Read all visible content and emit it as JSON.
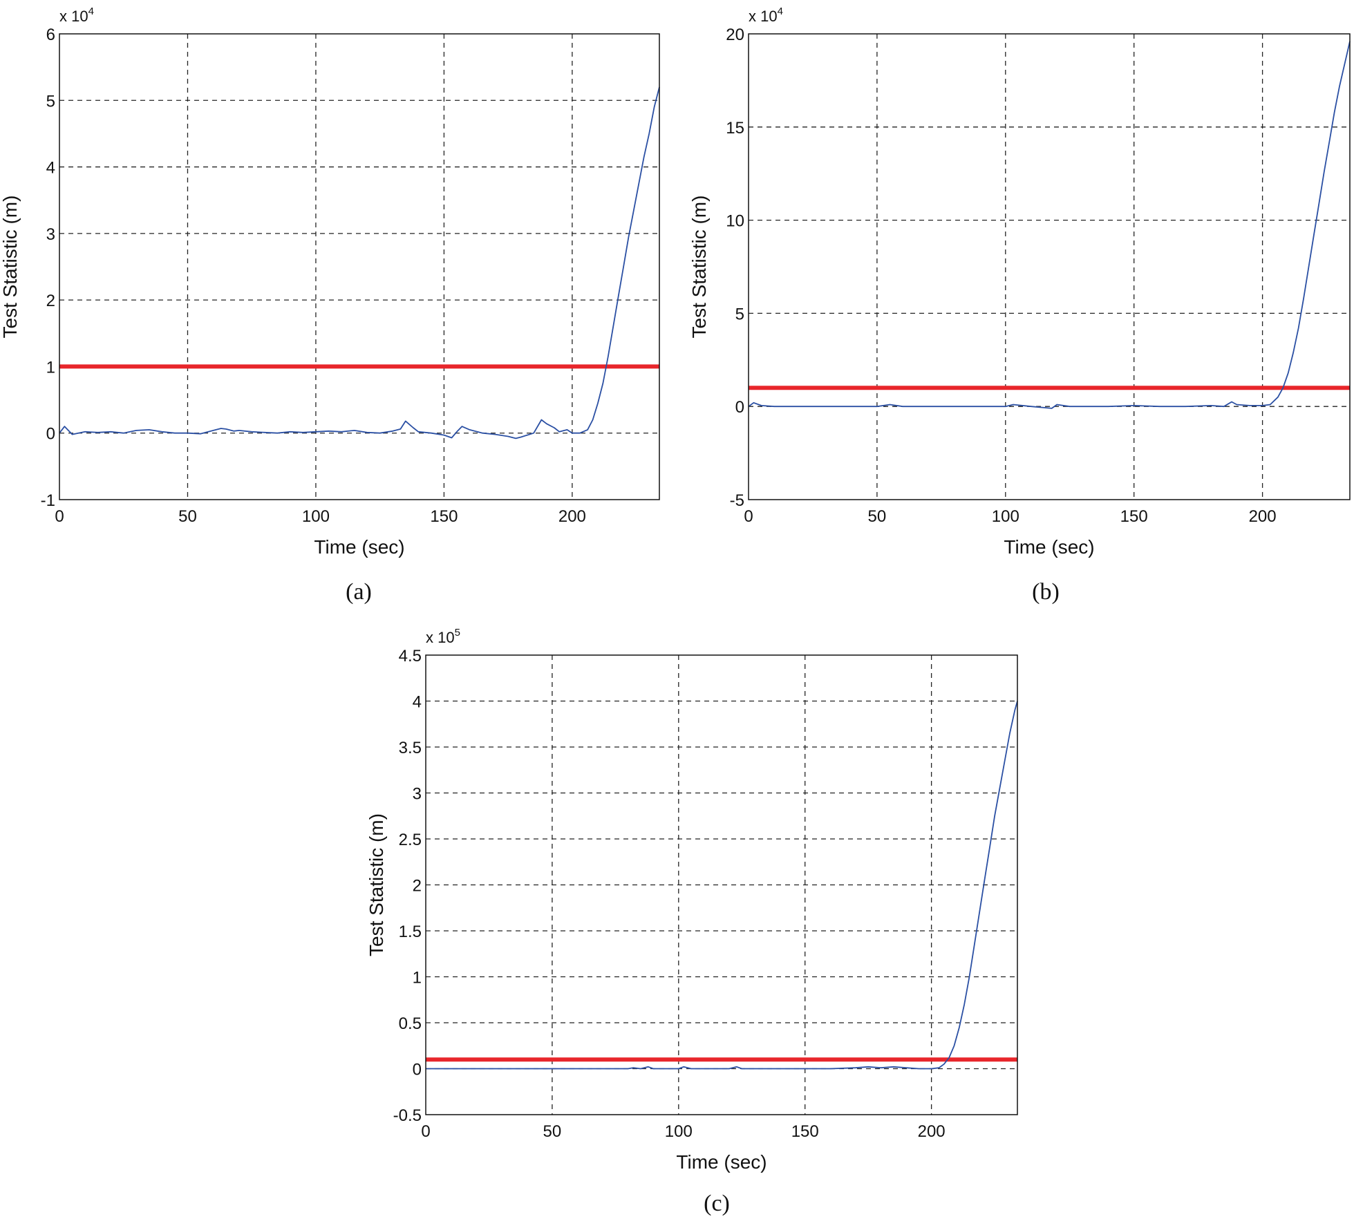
{
  "chart_data": [
    {
      "type": "line",
      "panel": "a",
      "caption": "(a)",
      "xlabel": "Time (sec)",
      "ylabel": "Test Statistic (m)",
      "y_multiplier_base": "x 10",
      "y_multiplier_exp": "4",
      "xlim": [
        0,
        234
      ],
      "ylim": [
        -1,
        6
      ],
      "xticks": [
        0,
        50,
        100,
        150,
        200
      ],
      "yticks": [
        -1,
        0,
        1,
        2,
        3,
        4,
        5,
        6
      ],
      "grid": true,
      "threshold": {
        "y": 1,
        "color": "#e8262b"
      },
      "series": [
        {
          "color": "#2a4fa3",
          "x": [
            0,
            2,
            5,
            10,
            15,
            20,
            25,
            30,
            35,
            40,
            45,
            50,
            55,
            60,
            63,
            65,
            68,
            70,
            75,
            80,
            85,
            90,
            95,
            100,
            105,
            110,
            115,
            120,
            125,
            130,
            133,
            135,
            138,
            140,
            145,
            150,
            153,
            155,
            157,
            160,
            165,
            170,
            175,
            178,
            180,
            185,
            188,
            190,
            193,
            195,
            198,
            200,
            203,
            206,
            208,
            210,
            212,
            214,
            216,
            218,
            220,
            222,
            224,
            226,
            228,
            230,
            232,
            234
          ],
          "values": [
            0,
            0.1,
            -0.02,
            0.02,
            0.01,
            0.02,
            0.0,
            0.04,
            0.05,
            0.02,
            0.0,
            0.0,
            -0.01,
            0.04,
            0.07,
            0.06,
            0.03,
            0.04,
            0.02,
            0.01,
            0.0,
            0.02,
            0.01,
            0.02,
            0.03,
            0.02,
            0.04,
            0.01,
            0.0,
            0.03,
            0.06,
            0.18,
            0.08,
            0.02,
            0.0,
            -0.03,
            -0.07,
            0.02,
            0.1,
            0.05,
            0.0,
            -0.02,
            -0.05,
            -0.08,
            -0.06,
            0.0,
            0.2,
            0.14,
            0.08,
            0.02,
            0.05,
            0.0,
            0.0,
            0.05,
            0.2,
            0.45,
            0.75,
            1.15,
            1.6,
            2.05,
            2.5,
            2.95,
            3.35,
            3.75,
            4.15,
            4.5,
            4.9,
            5.2
          ]
        }
      ]
    },
    {
      "type": "line",
      "panel": "b",
      "caption": "(b)",
      "xlabel": "Time (sec)",
      "ylabel": "Test Statistic (m)",
      "y_multiplier_base": "x 10",
      "y_multiplier_exp": "4",
      "xlim": [
        0,
        234
      ],
      "ylim": [
        -5,
        20
      ],
      "xticks": [
        0,
        50,
        100,
        150,
        200
      ],
      "yticks": [
        -5,
        0,
        5,
        10,
        15,
        20
      ],
      "grid": true,
      "threshold": {
        "y": 1,
        "color": "#e8262b"
      },
      "series": [
        {
          "color": "#2a4fa3",
          "x": [
            0,
            2,
            5,
            10,
            20,
            30,
            40,
            50,
            55,
            60,
            70,
            80,
            90,
            100,
            103,
            110,
            118,
            120,
            125,
            130,
            140,
            150,
            160,
            170,
            180,
            185,
            188,
            190,
            195,
            200,
            203,
            206,
            208,
            210,
            212,
            214,
            216,
            218,
            220,
            222,
            224,
            226,
            228,
            230,
            232,
            234
          ],
          "values": [
            0,
            0.2,
            0.05,
            0.0,
            0.0,
            0.0,
            0.0,
            0.0,
            0.1,
            0.0,
            0.0,
            0.0,
            0.0,
            0.0,
            0.1,
            0.0,
            -0.1,
            0.1,
            0.0,
            0.0,
            0.0,
            0.05,
            0.0,
            0.0,
            0.05,
            0.0,
            0.25,
            0.1,
            0.05,
            0.05,
            0.1,
            0.5,
            1.0,
            1.8,
            2.9,
            4.2,
            5.8,
            7.5,
            9.2,
            10.9,
            12.6,
            14.2,
            15.8,
            17.2,
            18.4,
            19.6
          ]
        }
      ]
    },
    {
      "type": "line",
      "panel": "c",
      "caption": "(c)",
      "xlabel": "Time (sec)",
      "ylabel": "Test Statistic (m)",
      "y_multiplier_base": "x 10",
      "y_multiplier_exp": "5",
      "xlim": [
        0,
        234
      ],
      "ylim": [
        -0.5,
        4.5
      ],
      "xticks": [
        0,
        50,
        100,
        150,
        200
      ],
      "yticks": [
        -0.5,
        0,
        0.5,
        1,
        1.5,
        2,
        2.5,
        3,
        3.5,
        4,
        4.5
      ],
      "grid": true,
      "threshold": {
        "y": 0.1,
        "color": "#e8262b"
      },
      "series": [
        {
          "color": "#2a4fa3",
          "x": [
            0,
            20,
            40,
            60,
            80,
            82,
            85,
            88,
            90,
            100,
            102,
            105,
            120,
            123,
            125,
            140,
            150,
            160,
            170,
            175,
            180,
            185,
            190,
            195,
            200,
            203,
            205,
            207,
            209,
            211,
            213,
            215,
            217,
            219,
            221,
            223,
            225,
            227,
            229,
            231,
            233,
            234
          ],
          "values": [
            0,
            0,
            0,
            0,
            0,
            0.01,
            0,
            0.02,
            0,
            0,
            0.02,
            0,
            0,
            0.02,
            0,
            0,
            0,
            0,
            0.01,
            0.02,
            0.01,
            0.02,
            0.01,
            0,
            0,
            0.01,
            0.05,
            0.12,
            0.25,
            0.45,
            0.7,
            1.0,
            1.35,
            1.7,
            2.05,
            2.4,
            2.75,
            3.05,
            3.35,
            3.65,
            3.9,
            4.0
          ]
        }
      ]
    }
  ]
}
